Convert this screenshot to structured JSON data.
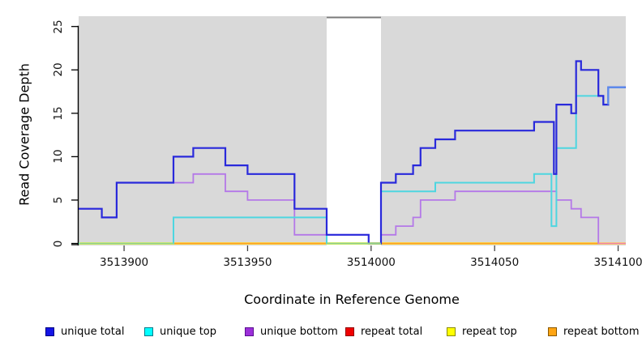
{
  "chart_data": {
    "type": "line",
    "style": "step",
    "title": "",
    "xlabel": "Coordinate in Reference Genome",
    "ylabel": "Read Coverage Depth",
    "xlim": [
      3513881.6,
      3514103.1
    ],
    "ylim": [
      0,
      26
    ],
    "x_tick_values": [
      3513900,
      3513950,
      3514000,
      3514050,
      3514100
    ],
    "x_tick_labels": [
      "3513900",
      "3513950",
      "3514000",
      "3514050",
      "3514100"
    ],
    "y_tick_values": [
      0,
      5,
      10,
      15,
      20,
      25
    ],
    "y_tick_labels": [
      "0",
      "5",
      "10",
      "15",
      "20",
      "25"
    ],
    "grid": false,
    "legend_position": "bottom",
    "background_color": "#d9d9d9",
    "gap_region": {
      "start": 3513982,
      "end": 3514004,
      "marker_color": "#7a7a7a"
    },
    "series": [
      {
        "name": "repeat top",
        "color": "#ffff4d",
        "width": 3,
        "step_points": [
          [
            3513882,
            0
          ]
        ]
      },
      {
        "name": "repeat total",
        "color": "#e01010",
        "width": 2,
        "step_points": [
          [
            3513882,
            0
          ]
        ]
      },
      {
        "name": "repeat bottom",
        "color": "#ff9e2b",
        "width": 2,
        "step_points": [
          [
            3513882,
            0
          ]
        ]
      },
      {
        "name": "unique bottom",
        "color": "#b478e8",
        "width": 1.8,
        "step_points": [
          [
            3513882,
            4
          ],
          [
            3513891,
            3
          ],
          [
            3513897,
            7
          ],
          [
            3513928,
            8
          ],
          [
            3513941,
            6
          ],
          [
            3513950,
            5
          ],
          [
            3513969,
            1
          ],
          [
            3513999,
            0
          ],
          [
            3514004,
            1
          ],
          [
            3514010,
            2
          ],
          [
            3514017,
            3
          ],
          [
            3514020,
            5
          ],
          [
            3514034,
            6
          ],
          [
            3514075,
            5
          ],
          [
            3514081,
            4
          ],
          [
            3514085,
            3
          ],
          [
            3514092,
            0
          ]
        ]
      },
      {
        "name": "unique top",
        "color": "#4ed6e0",
        "width": 2,
        "step_points": [
          [
            3513882,
            0
          ],
          [
            3513920,
            3
          ],
          [
            3513982,
            0
          ],
          [
            3514004,
            6
          ],
          [
            3514026,
            7
          ],
          [
            3514066,
            8
          ],
          [
            3514073,
            2
          ],
          [
            3514075,
            11
          ],
          [
            3514083,
            17
          ],
          [
            3514094,
            16
          ],
          [
            3514096,
            18
          ]
        ]
      },
      {
        "name": "unique total",
        "color": "#2929db",
        "width": 2.2,
        "step_points": [
          [
            3513882,
            4
          ],
          [
            3513891,
            3
          ],
          [
            3513897,
            7
          ],
          [
            3513920,
            10
          ],
          [
            3513928,
            11
          ],
          [
            3513941,
            9
          ],
          [
            3513950,
            8
          ],
          [
            3513969,
            4
          ],
          [
            3513982,
            1
          ],
          [
            3513999,
            0
          ],
          [
            3514004,
            7
          ],
          [
            3514010,
            8
          ],
          [
            3514017,
            9
          ],
          [
            3514020,
            11
          ],
          [
            3514026,
            12
          ],
          [
            3514034,
            13
          ],
          [
            3514066,
            14
          ],
          [
            3514074,
            8
          ],
          [
            3514075,
            16
          ],
          [
            3514081,
            15
          ],
          [
            3514083,
            21
          ],
          [
            3514085,
            20
          ],
          [
            3514092,
            17
          ],
          [
            3514094,
            16
          ],
          [
            3514096,
            18
          ]
        ]
      }
    ],
    "overlap_blends": [
      {
        "name": "cyan-over-yellow-left",
        "color": "#8ecf91",
        "width": 2,
        "points": [
          [
            3513882,
            0
          ],
          [
            3513920,
            0
          ]
        ]
      },
      {
        "name": "cyan-over-yellow-gap",
        "color": "#8ecf91",
        "width": 2,
        "points": [
          [
            3513982,
            0
          ],
          [
            3514004,
            0
          ]
        ]
      },
      {
        "name": "purple-over-orange-right",
        "color": "#ef82ab",
        "width": 2,
        "points": [
          [
            3514092,
            0
          ],
          [
            3514103,
            0
          ]
        ]
      },
      {
        "name": "blue-over-cyan-top-right",
        "color": "#5d8ced",
        "width": 2.2,
        "points": [
          [
            3514096,
            16
          ],
          [
            3514096,
            18
          ],
          [
            3514103,
            18
          ]
        ]
      }
    ]
  },
  "axes": {
    "y_label": "Read Coverage Depth",
    "x_label": "Coordinate in Reference Genome"
  },
  "legend": {
    "items": [
      {
        "label": "unique total",
        "fill": "#1414e6",
        "border": "#000080"
      },
      {
        "label": "unique top",
        "fill": "#00ffff",
        "border": "#007a8a"
      },
      {
        "label": "unique bottom",
        "fill": "#9c2fd9",
        "border": "#5a1090"
      },
      {
        "label": "repeat total",
        "fill": "#f00000",
        "border": "#900000"
      },
      {
        "label": "repeat top",
        "fill": "#ffff00",
        "border": "#8a8a00"
      },
      {
        "label": "repeat bottom",
        "fill": "#ffa513",
        "border": "#8a5800"
      }
    ]
  }
}
